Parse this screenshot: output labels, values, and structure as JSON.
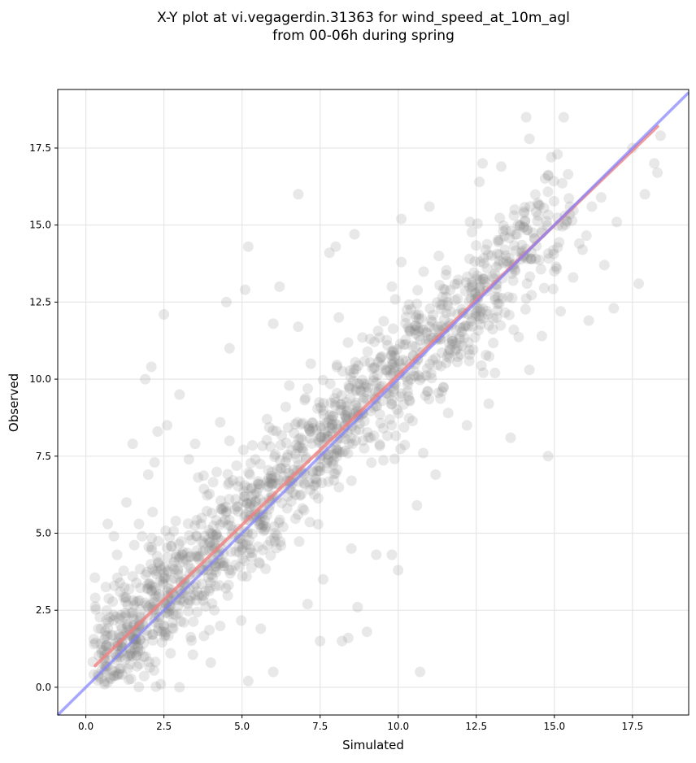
{
  "chart_data": {
    "type": "scatter",
    "title_line1": "X-Y plot at vi.vegagerdin.31363 for wind_speed_at_10m_agl",
    "title_line2": "from 00-06h during spring",
    "xlabel": "Simulated",
    "ylabel": "Observed",
    "xlim": [
      -0.9,
      19.3
    ],
    "ylim": [
      -0.9,
      19.4
    ],
    "x_ticks": [
      0.0,
      2.5,
      5.0,
      7.5,
      10.0,
      12.5,
      15.0,
      17.5
    ],
    "y_ticks": [
      0.0,
      2.5,
      5.0,
      7.5,
      10.0,
      12.5,
      15.0,
      17.5
    ],
    "x_tick_labels": [
      "0.0",
      "2.5",
      "5.0",
      "7.5",
      "10.0",
      "12.5",
      "15.0",
      "17.5"
    ],
    "y_tick_labels": [
      "0.0",
      "2.5",
      "5.0",
      "7.5",
      "10.0",
      "12.5",
      "15.0",
      "17.5"
    ],
    "grid": true,
    "colors": {
      "points": "#808080",
      "fit_line": "#f08080",
      "identity_line": "#8080ff"
    },
    "series": [
      {
        "role": "observations",
        "points": [
          [
            0.3,
            2.9
          ],
          [
            0.4,
            1.9
          ],
          [
            0.6,
            0.1
          ],
          [
            0.7,
            5.3
          ],
          [
            0.9,
            4.9
          ],
          [
            1.0,
            4.3
          ],
          [
            1.1,
            3.1
          ],
          [
            1.3,
            6.0
          ],
          [
            1.5,
            7.9
          ],
          [
            1.5,
            3.6
          ],
          [
            1.7,
            5.3
          ],
          [
            1.8,
            4.9
          ],
          [
            1.9,
            10.0
          ],
          [
            2.0,
            6.9
          ],
          [
            2.1,
            10.4
          ],
          [
            2.2,
            7.3
          ],
          [
            2.3,
            8.3
          ],
          [
            2.4,
            0.1
          ],
          [
            2.5,
            12.1
          ],
          [
            2.6,
            8.5
          ],
          [
            2.8,
            1.9
          ],
          [
            3.0,
            0.0
          ],
          [
            3.0,
            9.5
          ],
          [
            3.3,
            7.4
          ],
          [
            3.5,
            7.9
          ],
          [
            3.8,
            4.9
          ],
          [
            4.0,
            0.8
          ],
          [
            4.3,
            8.6
          ],
          [
            4.6,
            8.0
          ],
          [
            4.6,
            11.0
          ],
          [
            4.5,
            12.5
          ],
          [
            5.2,
            0.2
          ],
          [
            5.2,
            14.3
          ],
          [
            5.1,
            12.9
          ],
          [
            5.6,
            1.9
          ],
          [
            6.0,
            0.5
          ],
          [
            6.0,
            11.8
          ],
          [
            6.2,
            13.0
          ],
          [
            6.8,
            11.7
          ],
          [
            6.8,
            16.0
          ],
          [
            7.1,
            2.7
          ],
          [
            7.5,
            1.5
          ],
          [
            7.6,
            3.5
          ],
          [
            7.8,
            14.1
          ],
          [
            8.0,
            14.3
          ],
          [
            8.2,
            1.5
          ],
          [
            8.4,
            1.6
          ],
          [
            8.5,
            4.5
          ],
          [
            8.6,
            14.7
          ],
          [
            8.7,
            2.6
          ],
          [
            9.0,
            1.8
          ],
          [
            9.3,
            4.3
          ],
          [
            9.8,
            4.3
          ],
          [
            9.8,
            13.0
          ],
          [
            10.0,
            3.8
          ],
          [
            10.1,
            13.8
          ],
          [
            10.1,
            15.2
          ],
          [
            10.3,
            9.6
          ],
          [
            10.6,
            5.9
          ],
          [
            10.7,
            0.5
          ],
          [
            10.8,
            7.6
          ],
          [
            11.0,
            15.6
          ],
          [
            11.0,
            11.7
          ],
          [
            11.2,
            6.9
          ],
          [
            11.3,
            14.0
          ],
          [
            11.5,
            12.9
          ],
          [
            11.6,
            8.9
          ],
          [
            11.9,
            13.1
          ],
          [
            12.0,
            10.8
          ],
          [
            12.2,
            8.5
          ],
          [
            12.3,
            15.1
          ],
          [
            12.6,
            16.4
          ],
          [
            12.7,
            17.0
          ],
          [
            12.8,
            14.2
          ],
          [
            12.9,
            9.2
          ],
          [
            13.1,
            10.2
          ],
          [
            13.3,
            16.9
          ],
          [
            13.6,
            8.1
          ],
          [
            13.7,
            11.6
          ],
          [
            13.9,
            15.0
          ],
          [
            14.1,
            18.5
          ],
          [
            14.2,
            17.8
          ],
          [
            14.2,
            10.3
          ],
          [
            14.4,
            13.9
          ],
          [
            14.6,
            11.4
          ],
          [
            14.8,
            16.6
          ],
          [
            14.9,
            17.2
          ],
          [
            15.1,
            17.3
          ],
          [
            15.0,
            13.5
          ],
          [
            15.2,
            12.2
          ],
          [
            15.3,
            18.5
          ],
          [
            15.5,
            15.6
          ],
          [
            15.6,
            13.3
          ],
          [
            15.8,
            14.4
          ],
          [
            15.9,
            14.2
          ],
          [
            16.1,
            11.9
          ],
          [
            16.2,
            15.6
          ],
          [
            16.5,
            15.9
          ],
          [
            16.6,
            13.7
          ],
          [
            16.9,
            12.3
          ],
          [
            17.0,
            15.1
          ],
          [
            17.5,
            17.5
          ],
          [
            17.7,
            13.1
          ],
          [
            17.9,
            16.0
          ],
          [
            18.2,
            17.0
          ],
          [
            18.3,
            16.7
          ],
          [
            18.4,
            17.9
          ],
          [
            14.8,
            7.5
          ],
          [
            11.4,
            9.6
          ],
          [
            9.1,
            11.3
          ],
          [
            6.4,
            9.1
          ],
          [
            7.2,
            10.5
          ],
          [
            8.1,
            12.0
          ],
          [
            5.8,
            8.7
          ]
        ]
      }
    ],
    "fit_line": {
      "x": [
        0.3,
        18.3
      ],
      "y": [
        0.7,
        18.2
      ]
    },
    "identity_line": {
      "x": [
        -0.9,
        19.3
      ],
      "y": [
        -0.9,
        19.3
      ]
    }
  }
}
